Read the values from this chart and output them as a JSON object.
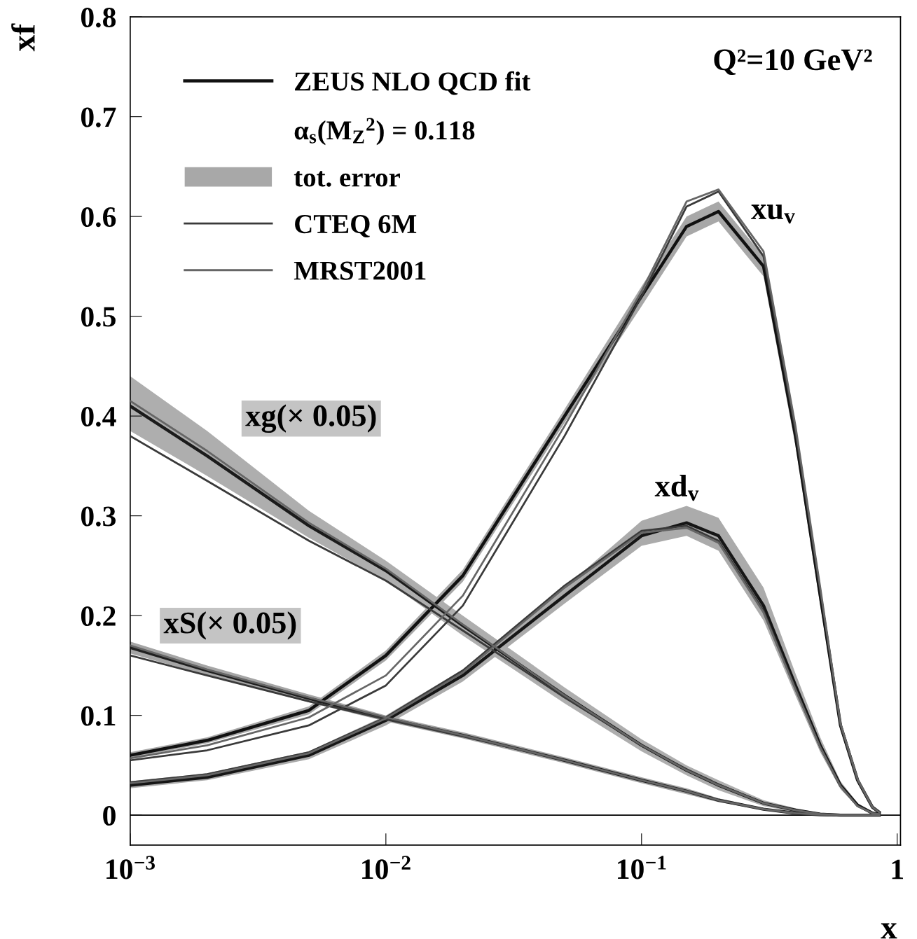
{
  "chart_data": {
    "type": "line",
    "xlabel": "x",
    "ylabel": "xf",
    "log": "x",
    "xlim": [
      0.001,
      1.03
    ],
    "ylim": [
      -0.03,
      0.8
    ],
    "xticks": [
      {
        "value": 0.001,
        "label": "10$^{−3}$"
      },
      {
        "value": 0.01,
        "label": "10$^{−2}$"
      },
      {
        "value": 0.1,
        "label": "10$^{−1}$"
      },
      1
    ],
    "yticks": [
      0,
      {
        "value": 0.1,
        "label": "0.1"
      },
      {
        "value": 0.2,
        "label": "0.2"
      },
      {
        "value": 0.3,
        "label": "0.3"
      },
      {
        "value": 0.4,
        "label": "0.4"
      },
      {
        "value": 0.5,
        "label": "0.5"
      },
      {
        "value": 0.6,
        "label": "0.6"
      },
      {
        "value": 0.7,
        "label": "0.7"
      },
      {
        "value": 0.8,
        "label": "0.8"
      }
    ],
    "x": [
      0.001,
      0.002,
      0.005,
      0.01,
      0.02,
      0.05,
      0.1,
      0.15,
      0.2,
      0.3,
      0.4,
      0.5,
      0.6,
      0.7,
      0.8,
      0.85
    ],
    "grid": false,
    "legend": "top left",
    "line_style": "solid",
    "marker": "none",
    "series": [
      {
        "name": "ZEUS NLO QCD fit",
        "color": "#111111",
        "values": [
          0.06,
          0.075,
          0.105,
          0.16,
          0.24,
          0.4,
          0.52,
          0.59,
          0.605,
          0.55,
          0.38,
          0.22,
          0.09,
          0.035,
          0.008,
          0.003
        ],
        "lower": [
          0.057,
          0.072,
          0.101,
          0.155,
          0.234,
          0.393,
          0.51,
          0.58,
          0.595,
          0.54,
          0.37,
          0.21,
          0.085,
          0.032,
          0.006,
          0.002
        ],
        "upper": [
          0.063,
          0.078,
          0.109,
          0.165,
          0.246,
          0.407,
          0.53,
          0.6,
          0.615,
          0.56,
          0.39,
          0.23,
          0.095,
          0.038,
          0.01,
          0.004
        ]
      },
      {
        "color": "#161616",
        "values": [
          0.03,
          0.038,
          0.06,
          0.095,
          0.14,
          0.22,
          0.28,
          0.293,
          0.28,
          0.21,
          0.13,
          0.07,
          0.03,
          0.01,
          0.002,
          0.001
        ],
        "lower": [
          0.027,
          0.035,
          0.056,
          0.09,
          0.134,
          0.212,
          0.27,
          0.28,
          0.265,
          0.195,
          0.12,
          0.063,
          0.026,
          0.008,
          0.001,
          0.0
        ],
        "upper": [
          0.034,
          0.042,
          0.064,
          0.1,
          0.146,
          0.228,
          0.295,
          0.31,
          0.298,
          0.228,
          0.142,
          0.078,
          0.034,
          0.012,
          0.003,
          0.002
        ]
      },
      {
        "color": "#1b1b1b",
        "values": [
          0.41,
          0.36,
          0.29,
          0.245,
          0.19,
          0.12,
          0.07,
          0.045,
          0.03,
          0.012,
          0.005,
          0.001,
          0.0,
          0.0,
          0.0,
          0.0
        ],
        "lower": [
          0.385,
          0.34,
          0.278,
          0.235,
          0.18,
          0.112,
          0.064,
          0.04,
          0.025,
          0.009,
          0.003,
          0.0,
          0.0,
          0.0,
          0.0,
          0.0
        ],
        "upper": [
          0.44,
          0.385,
          0.305,
          0.255,
          0.2,
          0.128,
          0.076,
          0.05,
          0.035,
          0.015,
          0.007,
          0.002,
          0.001,
          0.0,
          0.0,
          0.0
        ]
      },
      {
        "color": "#202020",
        "values": [
          0.168,
          0.145,
          0.117,
          0.097,
          0.08,
          0.055,
          0.035,
          0.024,
          0.015,
          0.006,
          0.002,
          0.0005,
          0.0,
          0.0,
          0.0,
          0.0
        ],
        "lower": [
          0.162,
          0.14,
          0.113,
          0.094,
          0.077,
          0.052,
          0.032,
          0.021,
          0.013,
          0.005,
          0.001,
          0.0,
          0.0,
          0.0,
          0.0,
          0.0
        ],
        "upper": [
          0.174,
          0.15,
          0.121,
          0.1,
          0.083,
          0.058,
          0.038,
          0.027,
          0.017,
          0.007,
          0.003,
          0.001,
          0.0,
          0.0,
          0.0,
          0.0
        ]
      },
      {
        "name": "CTEQ 6M",
        "color": "#3a3a3a",
        "values": [
          0.055,
          0.065,
          0.09,
          0.13,
          0.21,
          0.38,
          0.52,
          0.61,
          0.625,
          0.56,
          0.385,
          0.225,
          0.09,
          0.035,
          0.008,
          0.003
        ]
      },
      {
        "color": "#3a3a3a",
        "values": [
          0.033,
          0.041,
          0.063,
          0.098,
          0.145,
          0.23,
          0.285,
          0.29,
          0.275,
          0.205,
          0.127,
          0.068,
          0.029,
          0.009,
          0.002,
          0.001
        ]
      },
      {
        "color": "#3a3a3a",
        "values": [
          0.38,
          0.335,
          0.275,
          0.235,
          0.185,
          0.118,
          0.07,
          0.046,
          0.031,
          0.012,
          0.005,
          0.001,
          0.0,
          0.0,
          0.0,
          0.0
        ]
      },
      {
        "color": "#3a3a3a",
        "values": [
          0.16,
          0.14,
          0.114,
          0.096,
          0.079,
          0.055,
          0.035,
          0.024,
          0.015,
          0.006,
          0.002,
          0.0005,
          0.0,
          0.0,
          0.0,
          0.0
        ]
      },
      {
        "name": "MRST2001",
        "color": "#666666",
        "values": [
          0.057,
          0.07,
          0.098,
          0.14,
          0.22,
          0.39,
          0.525,
          0.615,
          0.627,
          0.565,
          0.39,
          0.228,
          0.092,
          0.036,
          0.008,
          0.003
        ]
      },
      {
        "color": "#666666",
        "values": [
          0.032,
          0.04,
          0.062,
          0.097,
          0.143,
          0.228,
          0.283,
          0.288,
          0.273,
          0.203,
          0.126,
          0.068,
          0.029,
          0.009,
          0.002,
          0.001
        ]
      },
      {
        "color": "#666666",
        "values": [
          0.415,
          0.365,
          0.293,
          0.247,
          0.191,
          0.12,
          0.07,
          0.045,
          0.03,
          0.012,
          0.005,
          0.001,
          0.0,
          0.0,
          0.0,
          0.0
        ]
      },
      {
        "color": "#666666",
        "values": [
          0.17,
          0.146,
          0.118,
          0.098,
          0.08,
          0.055,
          0.035,
          0.024,
          0.015,
          0.006,
          0.002,
          0.0005,
          0.0,
          0.0,
          0.0,
          0.0
        ]
      }
    ],
    "ref_lines": [
      {
        "axis": "y",
        "value": 0,
        "color": "#000000"
      }
    ],
    "annotations": [
      "α$_{s}$(M$_{Z}$$^{2}$) = 0.118",
      "tot. error",
      "Q²=10 GeV²",
      "xg(× 0.05)",
      "xS(× 0.05)",
      "xu$_{v}$",
      "xd$_{v}$"
    ]
  }
}
